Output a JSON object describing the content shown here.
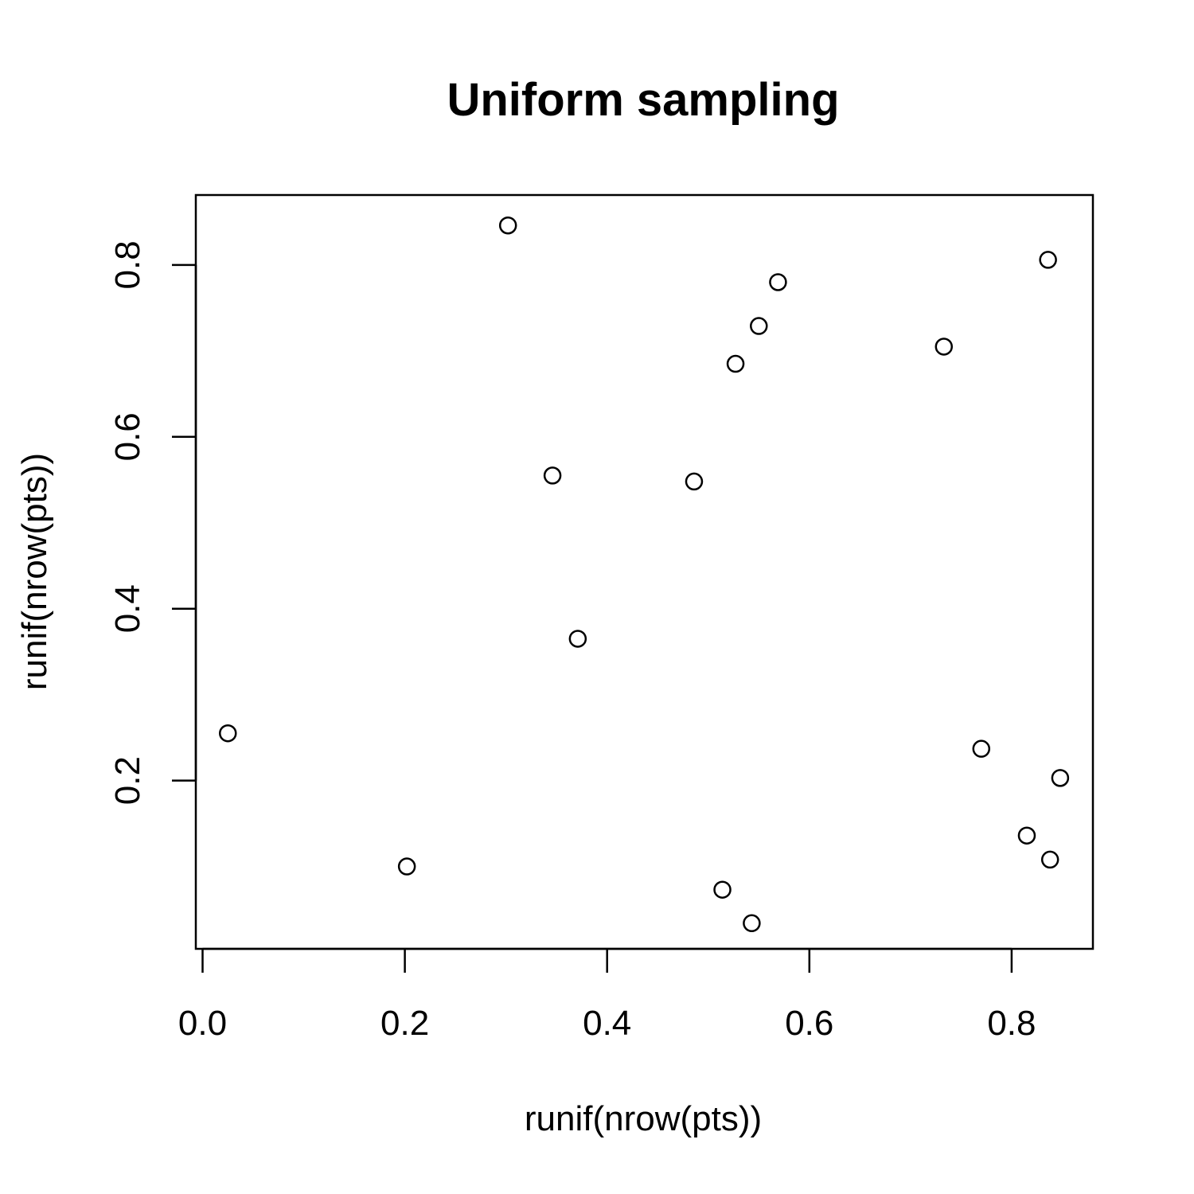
{
  "chart_data": {
    "type": "scatter",
    "title": "Uniform sampling",
    "xlabel": "runif(nrow(pts))",
    "ylabel": "runif(nrow(pts))",
    "xlim": [
      0.0,
      0.875
    ],
    "ylim": [
      0.0,
      0.875
    ],
    "xticks": [
      0.0,
      0.2,
      0.4,
      0.6,
      0.8
    ],
    "xtick_labels": [
      "0.0",
      "0.2",
      "0.4",
      "0.6",
      "0.8"
    ],
    "yticks": [
      0.2,
      0.4,
      0.6,
      0.8
    ],
    "ytick_labels": [
      "0.2",
      "0.4",
      "0.6",
      "0.8"
    ],
    "grid": false,
    "legend": "none",
    "marker": "open-circle",
    "points": [
      {
        "x": 0.025,
        "y": 0.255
      },
      {
        "x": 0.202,
        "y": 0.1
      },
      {
        "x": 0.302,
        "y": 0.846
      },
      {
        "x": 0.346,
        "y": 0.555
      },
      {
        "x": 0.371,
        "y": 0.365
      },
      {
        "x": 0.486,
        "y": 0.548
      },
      {
        "x": 0.514,
        "y": 0.073
      },
      {
        "x": 0.527,
        "y": 0.685
      },
      {
        "x": 0.543,
        "y": 0.034
      },
      {
        "x": 0.55,
        "y": 0.729
      },
      {
        "x": 0.569,
        "y": 0.78
      },
      {
        "x": 0.733,
        "y": 0.705
      },
      {
        "x": 0.77,
        "y": 0.237
      },
      {
        "x": 0.815,
        "y": 0.136
      },
      {
        "x": 0.836,
        "y": 0.806
      },
      {
        "x": 0.838,
        "y": 0.108
      },
      {
        "x": 0.848,
        "y": 0.203
      }
    ]
  }
}
